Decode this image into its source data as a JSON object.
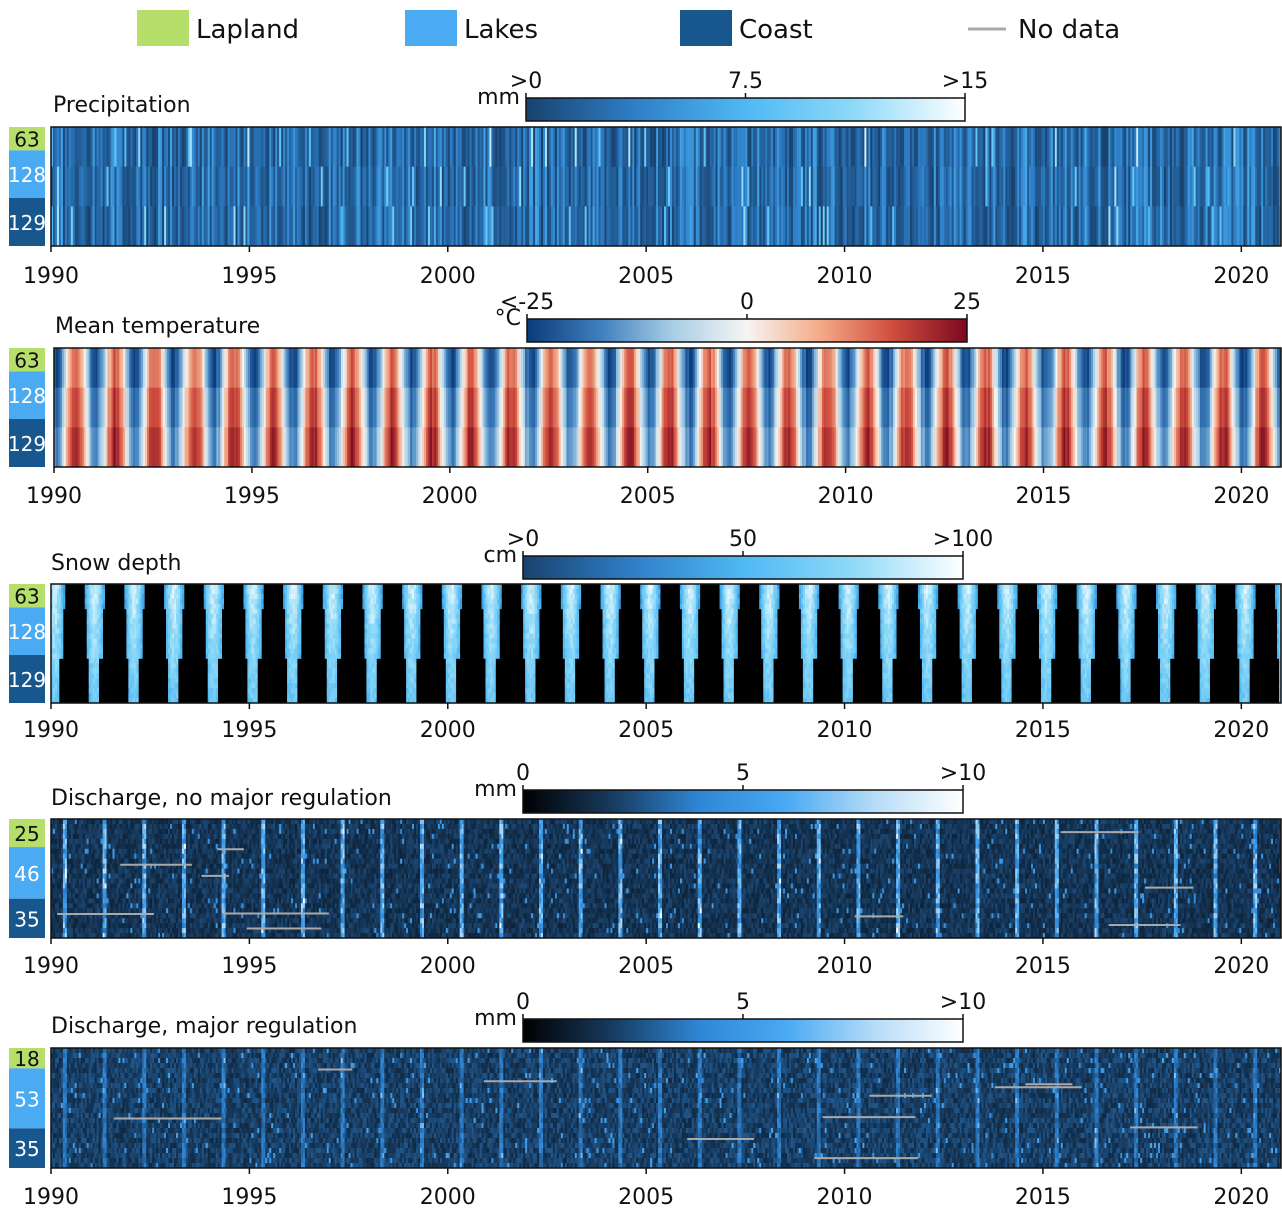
{
  "legend": {
    "items": [
      {
        "label": "Lapland",
        "color": "#b5df6a"
      },
      {
        "label": "Lakes",
        "color": "#4aaaf2"
      },
      {
        "label": "Coast",
        "color": "#17578d"
      },
      {
        "label": "No data",
        "color": "#a9a9a9"
      }
    ]
  },
  "colors": {
    "lapland": "#b5df6a",
    "lakes": "#4aaaf2",
    "coast": "#17578d",
    "nodata": "#a9a9a9"
  },
  "chart_data": [
    {
      "type": "heatmap",
      "title": "Precipitation",
      "colorbar": {
        "unit": "mm",
        "ticks": [
          ">0",
          "7.5",
          ">15"
        ],
        "tick_values": [
          0,
          7.5,
          15
        ],
        "range": [
          0,
          15
        ],
        "colormap": [
          "#18426e",
          "#2f7fc8",
          "#4fb8f4",
          "#8edaf8",
          "#ffffff"
        ]
      },
      "x_ticks": [
        "1990",
        "1995",
        "2000",
        "2005",
        "2010",
        "2015",
        "2020"
      ],
      "x_tick_values": [
        1990,
        1995,
        2000,
        2005,
        2010,
        2015,
        2020
      ],
      "xlim": [
        1990,
        2021
      ],
      "groups": [
        {
          "region": "Lapland",
          "count": 63
        },
        {
          "region": "Lakes",
          "count": 128
        },
        {
          "region": "Coast",
          "count": 129
        }
      ],
      "pattern": "precip"
    },
    {
      "type": "heatmap",
      "title": "Mean temperature",
      "colorbar": {
        "unit": "°C",
        "ticks": [
          "<-25",
          "0",
          "25"
        ],
        "tick_values": [
          -25,
          0,
          25
        ],
        "range": [
          -25,
          25
        ],
        "colormap": [
          "#0a3b7a",
          "#3f7fbd",
          "#a9cfe6",
          "#f6f4f2",
          "#f4aa88",
          "#cf4c3e",
          "#7a0a1f"
        ]
      },
      "x_ticks": [
        "1990",
        "1995",
        "2000",
        "2005",
        "2010",
        "2015",
        "2020"
      ],
      "x_tick_values": [
        1990,
        1995,
        2000,
        2005,
        2010,
        2015,
        2020
      ],
      "xlim": [
        1990,
        2021
      ],
      "groups": [
        {
          "region": "Lapland",
          "count": 63
        },
        {
          "region": "Lakes",
          "count": 128
        },
        {
          "region": "Coast",
          "count": 129
        }
      ],
      "pattern": "temp"
    },
    {
      "type": "heatmap",
      "title": "Snow depth",
      "colorbar": {
        "unit": "cm",
        "ticks": [
          ">0",
          "50",
          ">100"
        ],
        "tick_values": [
          0,
          50,
          100
        ],
        "range": [
          0,
          100
        ],
        "colormap": [
          "#18426e",
          "#2f7fc8",
          "#4fb8f4",
          "#8edaf8",
          "#ffffff"
        ]
      },
      "x_ticks": [
        "1990",
        "1995",
        "2000",
        "2005",
        "2010",
        "2015",
        "2020"
      ],
      "x_tick_values": [
        1990,
        1995,
        2000,
        2005,
        2010,
        2015,
        2020
      ],
      "xlim": [
        1990,
        2021
      ],
      "groups": [
        {
          "region": "Lapland",
          "count": 63
        },
        {
          "region": "Lakes",
          "count": 128
        },
        {
          "region": "Coast",
          "count": 129
        }
      ],
      "pattern": "snow"
    },
    {
      "type": "heatmap",
      "title": "Discharge, no major regulation",
      "colorbar": {
        "unit": "mm",
        "ticks": [
          "0",
          "5",
          ">10"
        ],
        "tick_values": [
          0,
          5,
          10
        ],
        "range": [
          0,
          10
        ],
        "colormap": [
          "#000000",
          "#173a5e",
          "#2f86d6",
          "#4aaaf2",
          "#b6dcf7",
          "#ffffff"
        ]
      },
      "x_ticks": [
        "1990",
        "1995",
        "2000",
        "2005",
        "2010",
        "2015",
        "2020"
      ],
      "x_tick_values": [
        1990,
        1995,
        2000,
        2005,
        2010,
        2015,
        2020
      ],
      "xlim": [
        1990,
        2021
      ],
      "groups": [
        {
          "region": "Lapland",
          "count": 25
        },
        {
          "region": "Lakes",
          "count": 46
        },
        {
          "region": "Coast",
          "count": 35
        }
      ],
      "pattern": "discharge"
    },
    {
      "type": "heatmap",
      "title": "Discharge, major regulation",
      "colorbar": {
        "unit": "mm",
        "ticks": [
          "0",
          "5",
          ">10"
        ],
        "tick_values": [
          0,
          5,
          10
        ],
        "range": [
          0,
          10
        ],
        "colormap": [
          "#000000",
          "#173a5e",
          "#2f86d6",
          "#4aaaf2",
          "#b6dcf7",
          "#ffffff"
        ]
      },
      "x_ticks": [
        "1990",
        "1995",
        "2000",
        "2005",
        "2010",
        "2015",
        "2020"
      ],
      "x_tick_values": [
        1990,
        1995,
        2000,
        2005,
        2010,
        2015,
        2020
      ],
      "xlim": [
        1990,
        2021
      ],
      "groups": [
        {
          "region": "Lapland",
          "count": 18
        },
        {
          "region": "Lakes",
          "count": 53
        },
        {
          "region": "Coast",
          "count": 35
        }
      ],
      "pattern": "regulated"
    }
  ]
}
